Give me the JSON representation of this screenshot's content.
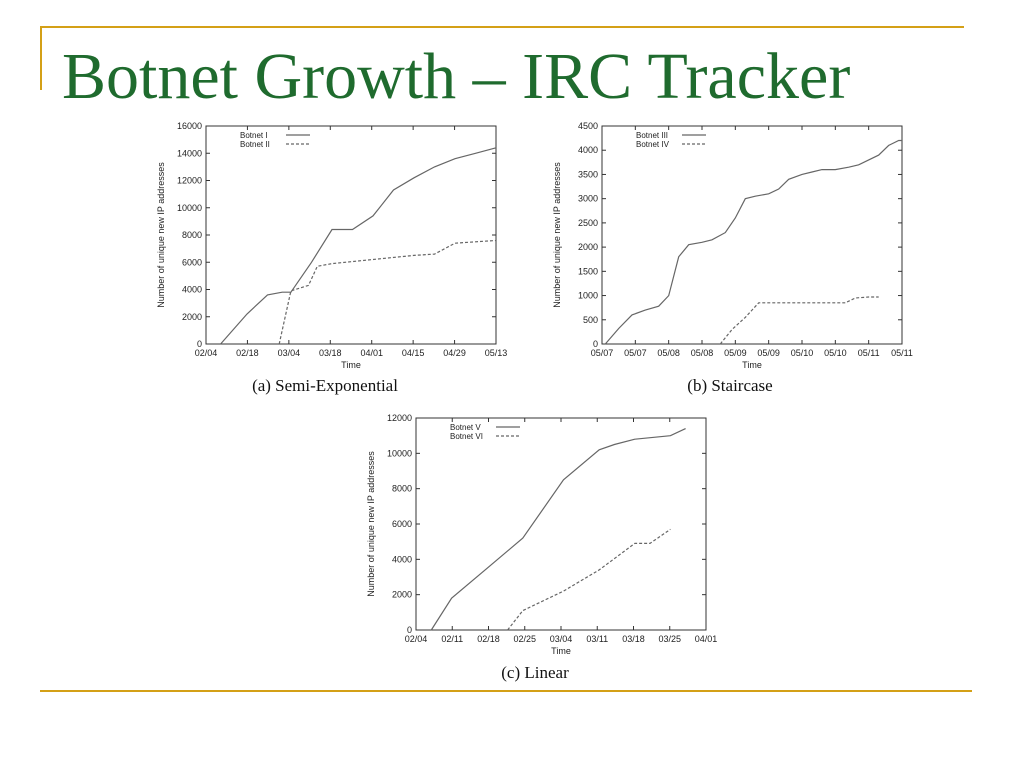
{
  "slide": {
    "title": "Botnet Growth – IRC Tracker",
    "colors": {
      "title": "#1f6b2e",
      "accent": "#d4a017",
      "line": "#666666"
    }
  },
  "chart_data": [
    {
      "type": "line",
      "caption": "(a) Semi-Exponential",
      "xlabel": "Time",
      "ylabel": "Number of unique new IP addresses",
      "x_ticks": [
        "02/04",
        "02/18",
        "03/04",
        "03/18",
        "04/01",
        "04/15",
        "04/29",
        "05/13"
      ],
      "ylim": [
        0,
        16000
      ],
      "y_ticks": [
        "0",
        "2000",
        "4000",
        "6000",
        "8000",
        "10000",
        "12000",
        "14000",
        "16000"
      ],
      "legend_position": "top-left",
      "series": [
        {
          "name": "Botnet I",
          "style": "solid",
          "x": [
            "02/09",
            "02/18",
            "02/25",
            "03/01",
            "03/04",
            "03/11",
            "03/18",
            "03/25",
            "04/01",
            "04/08",
            "04/15",
            "04/22",
            "04/29",
            "05/06",
            "05/13"
          ],
          "y": [
            0,
            2200,
            3600,
            3800,
            3800,
            6000,
            8400,
            8400,
            9400,
            11300,
            12200,
            13000,
            13600,
            14000,
            14400
          ]
        },
        {
          "name": "Botnet II",
          "style": "dashed",
          "x": [
            "02/29",
            "03/04",
            "03/10",
            "03/13",
            "03/18",
            "04/01",
            "04/15",
            "04/22",
            "04/29",
            "05/06",
            "05/13"
          ],
          "y": [
            0,
            3900,
            4300,
            5700,
            5900,
            6200,
            6500,
            6600,
            7400,
            7500,
            7600
          ]
        }
      ]
    },
    {
      "type": "line",
      "caption": "(b) Staircase",
      "xlabel": "Time",
      "ylabel": "Number of unique new IP addresses",
      "x_ticks": [
        "05/07",
        "05/07",
        "05/08",
        "05/08",
        "05/09",
        "05/09",
        "05/10",
        "05/10",
        "05/11",
        "05/11"
      ],
      "ylim": [
        0,
        4500
      ],
      "y_ticks": [
        "0",
        "500",
        "1000",
        "1500",
        "2000",
        "2500",
        "3000",
        "3500",
        "4000",
        "4500"
      ],
      "legend_position": "top-left",
      "series": [
        {
          "name": "Botnet III",
          "style": "solid",
          "x": [
            0.1,
            0.5,
            0.9,
            1.3,
            1.7,
            2.0,
            2.3,
            2.6,
            3.0,
            3.3,
            3.7,
            4.0,
            4.3,
            4.6,
            5.0,
            5.3,
            5.6,
            6.0,
            6.3,
            6.6,
            7.0,
            7.4,
            7.7,
            8.0,
            8.3,
            8.6,
            8.9,
            9.0
          ],
          "y": [
            0,
            320,
            600,
            700,
            780,
            1000,
            1800,
            2050,
            2100,
            2150,
            2300,
            2600,
            3000,
            3050,
            3100,
            3200,
            3400,
            3500,
            3550,
            3600,
            3600,
            3650,
            3700,
            3800,
            3900,
            4100,
            4200,
            4200
          ]
        },
        {
          "name": "Botnet IV",
          "style": "dashed",
          "x": [
            3.55,
            3.9,
            4.3,
            4.7,
            5.0,
            5.6,
            6.5,
            7.3,
            7.6,
            8.0,
            8.3
          ],
          "y": [
            0,
            300,
            550,
            850,
            850,
            850,
            850,
            850,
            950,
            970,
            970
          ]
        }
      ]
    },
    {
      "type": "line",
      "caption": "(c) Linear",
      "xlabel": "Time",
      "ylabel": "Number of unique new IP addresses",
      "x_ticks": [
        "02/04",
        "02/11",
        "02/18",
        "02/25",
        "03/04",
        "03/11",
        "03/18",
        "03/25",
        "04/01"
      ],
      "ylim": [
        0,
        12000
      ],
      "y_ticks": [
        "0",
        "2000",
        "4000",
        "6000",
        "8000",
        "10000",
        "12000"
      ],
      "legend_position": "top-left",
      "series": [
        {
          "name": "Botnet V",
          "style": "solid",
          "x": [
            "02/07",
            "02/11",
            "02/18",
            "02/25",
            "03/04",
            "03/11",
            "03/14",
            "03/18",
            "03/25",
            "03/28"
          ],
          "y": [
            0,
            1800,
            3500,
            5200,
            8500,
            10200,
            10500,
            10800,
            11000,
            11400
          ]
        },
        {
          "name": "Botnet VI",
          "style": "dashed",
          "x": [
            "02/22",
            "02/25",
            "03/04",
            "03/11",
            "03/18",
            "03/21",
            "03/25"
          ],
          "y": [
            0,
            1100,
            2200,
            3400,
            4900,
            4900,
            5700
          ]
        }
      ]
    }
  ]
}
